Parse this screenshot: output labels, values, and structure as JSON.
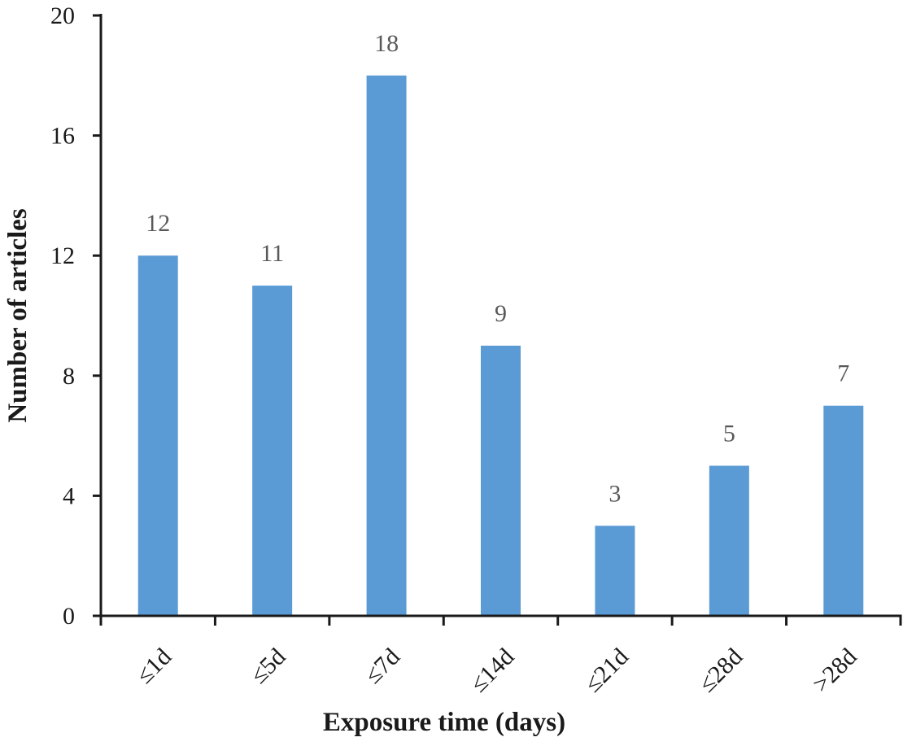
{
  "chart_data": {
    "type": "bar",
    "title": "",
    "xlabel": "Exposure time (days)",
    "ylabel": "Number of articles",
    "categories": [
      "≤1d",
      "≤5d",
      "≤7d",
      "≤14d",
      "≤21d",
      "≤28d",
      ">28d"
    ],
    "values": [
      12,
      11,
      18,
      9,
      3,
      5,
      7
    ],
    "data_labels": [
      "12",
      "11",
      "18",
      "9",
      "3",
      "5",
      "7"
    ],
    "ylim": [
      0,
      20
    ],
    "yticks": [
      0,
      4,
      8,
      12,
      16,
      20
    ],
    "grid": false,
    "legend": null,
    "bar_color": "#5b9bd5",
    "axis_color": "#1a1a1a",
    "data_label_color": "#595959"
  }
}
